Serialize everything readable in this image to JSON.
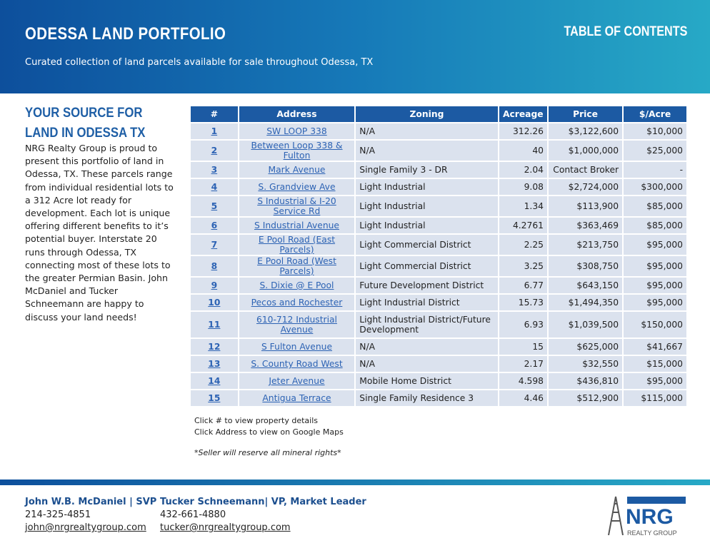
{
  "header": {
    "title": "ODESSA LAND PORTFOLIO",
    "subtitle": "Curated collection of land parcels available for sale throughout Odessa, TX",
    "toc": "TABLE OF CONTENTS"
  },
  "sidebar": {
    "heading": "YOUR SOURCE FOR LAND IN ODESSA TX",
    "body": "NRG Realty Group is proud to present this portfolio of land in Odessa, TX. These parcels range from individual residential lots to a 312 Acre lot ready for development. Each lot is unique offering different benefits to it’s potential buyer. Interstate 20 runs through Odessa, TX connecting most of these lots to the greater Permian Basin. John McDaniel and Tucker Schneemann are happy to discuss your land needs!"
  },
  "table": {
    "columns": [
      "#",
      "Address",
      "Zoning",
      "Acreage",
      "Price",
      "$/Acre"
    ],
    "rows": [
      [
        "1",
        "SW LOOP 338",
        "N/A",
        "312.26",
        "$3,122,600",
        "$10,000"
      ],
      [
        "2",
        "Between Loop 338 & Fulton",
        "N/A",
        "40",
        "$1,000,000",
        "$25,000"
      ],
      [
        "3",
        "Mark Avenue",
        "Single Family 3 - DR",
        "2.04",
        "Contact Broker",
        "-"
      ],
      [
        "4",
        "S. Grandview Ave",
        "Light Industrial",
        "9.08",
        "$2,724,000",
        "$300,000"
      ],
      [
        "5",
        "S Industrial & I-20 Service Rd",
        "Light Industrial",
        "1.34",
        "$113,900",
        "$85,000"
      ],
      [
        "6",
        "S Industrial Avenue",
        "Light Industrial",
        "4.2761",
        "$363,469",
        "$85,000"
      ],
      [
        "7",
        "E Pool Road (East Parcels)",
        "Light Commercial District",
        "2.25",
        "$213,750",
        "$95,000"
      ],
      [
        "8",
        "E Pool Road (West Parcels)",
        "Light Commercial District",
        "3.25",
        "$308,750",
        "$95,000"
      ],
      [
        "9",
        "S. Dixie @ E Pool",
        "Future Development District",
        "6.77",
        "$643,150",
        "$95,000"
      ],
      [
        "10",
        "Pecos and Rochester",
        "Light Industrial District",
        "15.73",
        "$1,494,350",
        "$95,000"
      ],
      [
        "11",
        "610-712 Industrial Avenue",
        "Light Industrial District/Future Development",
        "6.93",
        "$1,039,500",
        "$150,000"
      ],
      [
        "12",
        "S Fulton Avenue",
        "N/A",
        "15",
        "$625,000",
        "$41,667"
      ],
      [
        "13",
        "S. County Road West",
        "N/A",
        "2.17",
        "$32,550",
        "$15,000"
      ],
      [
        "14",
        "Jeter Avenue",
        "Mobile Home District",
        "4.598",
        "$436,810",
        "$95,000"
      ],
      [
        "15",
        "Antigua Terrace",
        "Single Family Residence 3",
        "4.46",
        "$512,900",
        "$115,000"
      ]
    ]
  },
  "notes": [
    "Click # to view property details",
    "Click Address to view on Google Maps"
  ],
  "footnote": "*Seller will reserve all mineral rights*",
  "contacts": [
    {
      "name": "John W.B. McDaniel | SVP",
      "phone": "214-325-4851",
      "email": "john@nrgrealtygroup.com"
    },
    {
      "name": "Tucker Schneemann| VP, Market Leader",
      "phone": "432-661-4880",
      "email": "tucker@nrgrealtygroup.com"
    }
  ],
  "logo": {
    "mark": "NRG",
    "tagline": "REALTY GROUP"
  }
}
